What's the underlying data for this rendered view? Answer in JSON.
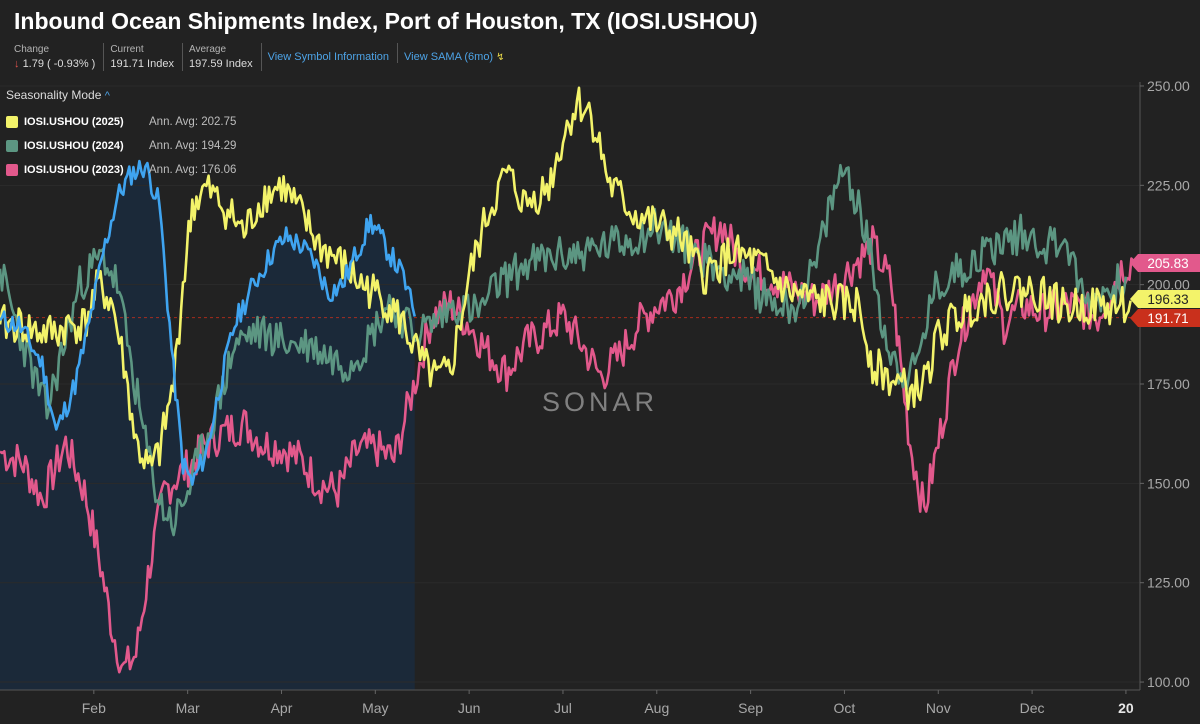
{
  "header": {
    "title": "Inbound Ocean Shipments Index, Port of Houston, TX (IOSI.USHOU)",
    "change_label": "Change",
    "change_arrow": "↓",
    "change_value": "1.79 ( -0.93% )",
    "current_label": "Current",
    "current_value": "191.71 Index",
    "average_label": "Average",
    "average_value": "197.59 Index",
    "link_symbol": "View Symbol Information",
    "link_sama": "View SAMA (6mo)"
  },
  "legend": {
    "mode": "Seasonality Mode",
    "items": [
      {
        "name": "IOSI.USHOU (2025)",
        "avg": "Ann. Avg: 202.75",
        "color": "#f3f36a"
      },
      {
        "name": "IOSI.USHOU (2024)",
        "avg": "Ann. Avg: 194.29",
        "color": "#5c9682"
      },
      {
        "name": "IOSI.USHOU (2023)",
        "avg": "Ann. Avg: 176.06",
        "color": "#e2598c"
      }
    ]
  },
  "watermark": "SONAR",
  "chart_data": {
    "type": "line",
    "xlabel": "",
    "ylabel": "",
    "ylim": [
      98,
      251
    ],
    "xlim": [
      0,
      12.15
    ],
    "y_ticks": [
      "250.00",
      "225.00",
      "200.00",
      "175.00",
      "150.00",
      "125.00",
      "100.00"
    ],
    "y_tick_values": [
      250,
      225,
      200,
      175,
      150,
      125,
      100
    ],
    "x_ticks": [
      "Feb",
      "Mar",
      "Apr",
      "May",
      "Jun",
      "Jul",
      "Aug",
      "Sep",
      "Oct",
      "Nov",
      "Dec",
      "20"
    ],
    "x_tick_positions": [
      1,
      2,
      3,
      4,
      5,
      6,
      7,
      8,
      9,
      10,
      11,
      12
    ],
    "current_value_line": 191.71,
    "badges": [
      {
        "label": "205.83",
        "value": 205.83,
        "color": "#e2598c"
      },
      {
        "label": "196.33",
        "value": 196.33,
        "color": "#f3f36a"
      },
      {
        "label": "191.71",
        "value": 191.71,
        "color": "#c9301c"
      }
    ],
    "series": [
      {
        "name": "IOSI.USHOU (2023)",
        "color": "#e2598c",
        "x": [
          0,
          0.25,
          0.45,
          0.7,
          0.9,
          1.05,
          1.2,
          1.32,
          1.45,
          1.6,
          1.75,
          1.9,
          2.05,
          2.2,
          2.4,
          2.6,
          2.8,
          3.0,
          3.2,
          3.4,
          3.6,
          3.8,
          4.0,
          4.2,
          4.45,
          4.6,
          4.8,
          5.0,
          5.2,
          5.4,
          5.6,
          5.8,
          6.0,
          6.2,
          6.4,
          6.6,
          6.8,
          7.0,
          7.2,
          7.5,
          7.7,
          7.9,
          8.2,
          8.5,
          8.7,
          8.9,
          9.1,
          9.3,
          9.5,
          9.6,
          9.7,
          9.85,
          10.0,
          10.2,
          10.5,
          10.7,
          10.9,
          11.1,
          11.4,
          11.7,
          11.95,
          12.08
        ],
        "y": [
          158,
          155,
          146,
          160,
          148,
          132,
          113,
          103,
          107,
          130,
          148,
          152,
          155,
          160,
          163,
          165,
          160,
          159,
          156,
          150,
          148,
          158,
          159,
          156,
          178,
          192,
          195,
          190,
          183,
          178,
          185,
          188,
          192,
          185,
          177,
          182,
          190,
          195,
          198,
          210,
          215,
          205,
          202,
          198,
          196,
          200,
          205,
          210,
          200,
          180,
          160,
          143,
          160,
          185,
          205,
          190,
          195,
          193,
          195,
          192,
          204,
          206
        ]
      },
      {
        "name": "IOSI.USHOU (2024)",
        "color": "#5c9682",
        "x": [
          0,
          0.15,
          0.35,
          0.5,
          0.65,
          0.85,
          1.0,
          1.1,
          1.25,
          1.4,
          1.55,
          1.7,
          1.85,
          2.0,
          2.15,
          2.35,
          2.5,
          2.7,
          2.9,
          3.1,
          3.3,
          3.5,
          3.7,
          3.9,
          4.15,
          4.4,
          4.6,
          4.85,
          5.1,
          5.3,
          5.6,
          5.9,
          6.2,
          6.5,
          6.8,
          7.0,
          7.3,
          7.6,
          7.9,
          8.1,
          8.3,
          8.5,
          8.7,
          8.85,
          9.0,
          9.15,
          9.3,
          9.45,
          9.6,
          9.75,
          9.95,
          10.15,
          10.3,
          10.6,
          10.9,
          11.15,
          11.35,
          11.55,
          11.8,
          12.0
        ],
        "y": [
          204,
          192,
          178,
          168,
          182,
          200,
          205,
          207,
          200,
          180,
          160,
          145,
          140,
          148,
          158,
          172,
          185,
          188,
          187,
          185,
          185,
          182,
          180,
          185,
          196,
          188,
          190,
          195,
          193,
          200,
          205,
          207,
          208,
          210,
          212,
          215,
          210,
          205,
          202,
          198,
          195,
          195,
          205,
          220,
          230,
          220,
          205,
          185,
          178,
          178,
          198,
          203,
          205,
          210,
          213,
          210,
          212,
          196,
          198,
          202
        ]
      },
      {
        "name": "IOSI.USHOU (2025)",
        "color": "#f3f36a",
        "x": [
          0,
          0.2,
          0.4,
          0.6,
          0.75,
          0.9,
          1.05,
          1.2,
          1.32,
          1.45,
          1.6,
          1.7,
          1.85,
          1.95,
          2.05,
          2.2,
          2.45,
          2.6,
          2.8,
          3.0,
          3.2,
          3.4,
          3.65,
          3.85,
          4.0,
          4.15,
          4.3,
          4.5,
          4.65,
          4.8,
          5.0,
          5.2,
          5.4,
          5.6,
          5.85,
          6.0,
          6.15,
          6.3,
          6.5,
          6.75,
          7.0,
          7.25,
          7.5,
          7.8,
          8.1,
          8.4,
          8.7,
          9.0,
          9.15,
          9.3,
          9.5,
          9.7,
          9.85,
          10.0,
          10.2,
          10.5,
          10.8,
          11.1,
          11.35,
          11.6,
          11.85,
          12.05
        ],
        "y": [
          190,
          190,
          188,
          188,
          190,
          190,
          200,
          195,
          180,
          160,
          153,
          158,
          175,
          200,
          220,
          224,
          218,
          213,
          222,
          225,
          218,
          210,
          205,
          200,
          198,
          195,
          190,
          180,
          176,
          178,
          202,
          218,
          228,
          220,
          225,
          237,
          246,
          243,
          225,
          218,
          215,
          212,
          202,
          208,
          205,
          198,
          196,
          195,
          195,
          180,
          176,
          173,
          175,
          187,
          192,
          197,
          199,
          198,
          194,
          195,
          194,
          196
        ]
      }
    ],
    "reference_2026": {
      "name": "",
      "color": "#3fa4f0",
      "x": [
        0,
        0.2,
        0.45,
        0.6,
        0.8,
        0.95,
        1.1,
        1.25,
        1.4,
        1.55,
        1.7,
        1.85,
        1.95,
        2.05,
        2.2,
        2.35,
        2.5,
        2.7,
        2.9,
        3.05,
        3.2,
        3.35,
        3.5,
        3.65,
        3.8,
        3.95,
        4.1,
        4.3,
        4.42
      ],
      "y": [
        191,
        190,
        180,
        163,
        175,
        190,
        208,
        222,
        228,
        230,
        220,
        178,
        155,
        150,
        158,
        175,
        190,
        200,
        208,
        212,
        210,
        206,
        198,
        200,
        208,
        216,
        210,
        202,
        192
      ]
    }
  }
}
